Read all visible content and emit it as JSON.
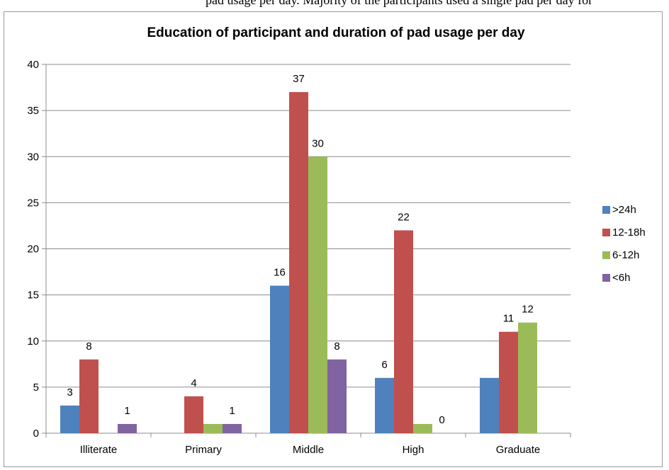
{
  "top_crop_text": "pad usage per day. Majority of the participants used a single pad per day for",
  "chart_data": {
    "type": "bar",
    "title": "Education of participant and duration of pad usage per day",
    "xlabel": "",
    "ylabel": "",
    "ylim": [
      0,
      40
    ],
    "yticks": [
      0,
      5,
      10,
      15,
      20,
      25,
      30,
      35,
      40
    ],
    "grid": true,
    "legend_position": "right",
    "categories": [
      "Illiterate",
      "Primary",
      "Middle",
      "High",
      "Graduate"
    ],
    "series": [
      {
        "name": ">24h",
        "color": "#4F81BD",
        "values": [
          3,
          null,
          16,
          6,
          6
        ],
        "labels": [
          "3",
          "",
          "16",
          "6",
          ""
        ]
      },
      {
        "name": "12-18h",
        "color": "#C0504D",
        "values": [
          8,
          4,
          37,
          22,
          11
        ],
        "labels": [
          "8",
          "4",
          "37",
          "22",
          "11"
        ]
      },
      {
        "name": "6-12h",
        "color": "#9BBB59",
        "values": [
          null,
          1,
          30,
          1,
          12
        ],
        "labels": [
          "",
          "",
          "30",
          "",
          "12"
        ]
      },
      {
        "name": "<6h",
        "color": "#8064A2",
        "values": [
          1,
          1,
          8,
          0,
          null
        ],
        "labels": [
          "1",
          "1",
          "8",
          "0",
          ""
        ]
      }
    ]
  }
}
